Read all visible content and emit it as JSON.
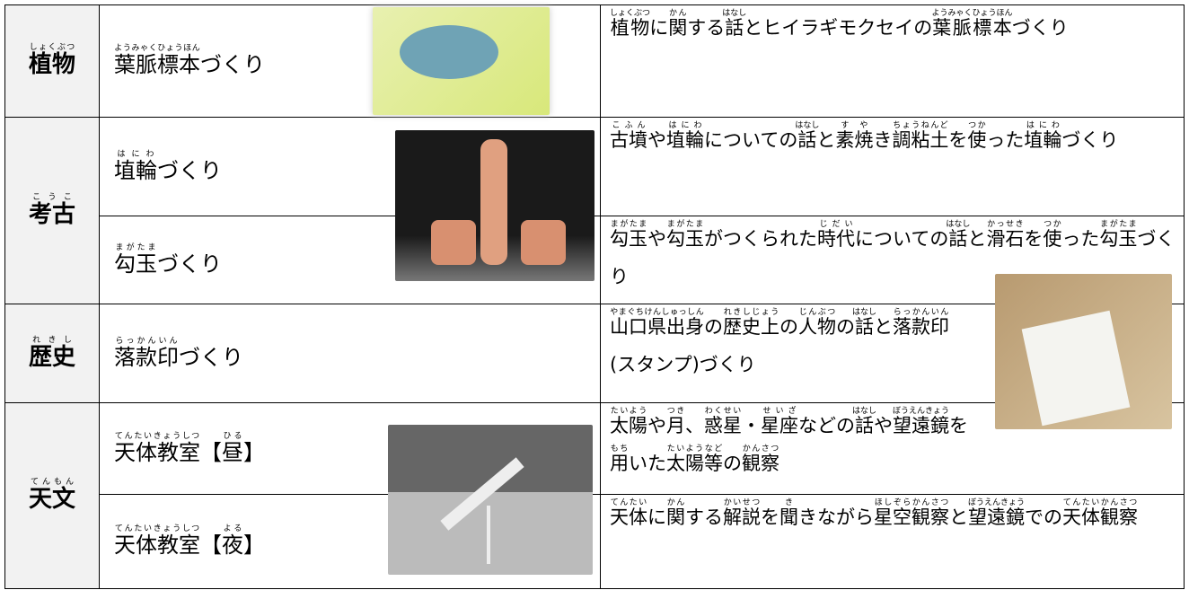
{
  "table": {
    "rows": [
      {
        "category": {
          "base": "植物",
          "ruby": "しょくぶつ"
        },
        "programs": [
          {
            "name": [
              {
                "base": "葉脈標本",
                "ruby": "ようみゃくひょうほん"
              },
              "づくり"
            ],
            "description": [
              {
                "base": "植物",
                "ruby": "しょくぶつ"
              },
              "に",
              {
                "base": "関",
                "ruby": "かん"
              },
              "する",
              {
                "base": "話",
                "ruby": "はなし"
              },
              "とヒイラギモクセイの",
              {
                "base": "葉脈標本",
                "ruby": "ようみゃくひょうほん"
              },
              "づくり"
            ]
          }
        ]
      },
      {
        "category": {
          "base": "考古",
          "ruby": "こうこ"
        },
        "programs": [
          {
            "name": [
              {
                "base": "埴輪",
                "ruby": "はにわ"
              },
              "づくり"
            ],
            "description": [
              {
                "base": "古墳",
                "ruby": "こふん"
              },
              "や",
              {
                "base": "埴輪",
                "ruby": "はにわ"
              },
              "についての",
              {
                "base": "話",
                "ruby": "はなし"
              },
              "と",
              {
                "base": "素焼",
                "ruby": "すや"
              },
              "き",
              {
                "base": "調粘土",
                "ruby": "ちょうねんど"
              },
              "を",
              {
                "base": "使",
                "ruby": "つか"
              },
              "った",
              {
                "base": "埴輪",
                "ruby": "はにわ"
              },
              "づくり"
            ]
          },
          {
            "name": [
              {
                "base": "勾玉",
                "ruby": "まがたま"
              },
              "づくり"
            ],
            "description": [
              {
                "base": "勾玉",
                "ruby": "まがたま"
              },
              "や",
              {
                "base": "勾玉",
                "ruby": "まがたま"
              },
              "がつくられた",
              {
                "base": "時代",
                "ruby": "じだい"
              },
              "についての",
              {
                "base": "話",
                "ruby": "はなし"
              },
              "と",
              {
                "base": "滑石",
                "ruby": "かっせき"
              },
              "を",
              {
                "base": "使",
                "ruby": "つか"
              },
              "った",
              {
                "base": "勾玉",
                "ruby": "まがたま"
              },
              "づくり"
            ]
          }
        ]
      },
      {
        "category": {
          "base": "歴史",
          "ruby": "れきし"
        },
        "programs": [
          {
            "name": [
              {
                "base": "落款印",
                "ruby": "らっかんいん"
              },
              "づくり"
            ],
            "description": [
              {
                "base": "山口県出身",
                "ruby": "やまぐちけんしゅっしん"
              },
              "の",
              {
                "base": "歴史上",
                "ruby": "れきしじょう"
              },
              "の",
              {
                "base": "人物",
                "ruby": "じんぶつ"
              },
              "の",
              {
                "base": "話",
                "ruby": "はなし"
              },
              "と",
              {
                "base": "落款印",
                "ruby": "らっかんいん"
              },
              "(スタンプ)づくり"
            ]
          }
        ]
      },
      {
        "category": {
          "base": "天文",
          "ruby": "てんもん"
        },
        "programs": [
          {
            "name": [
              {
                "base": "天体教室",
                "ruby": "てんたいきょうしつ"
              },
              "【",
              {
                "base": "昼",
                "ruby": "ひる"
              },
              "】"
            ],
            "description": [
              {
                "base": "太陽",
                "ruby": "たいよう"
              },
              "や",
              {
                "base": "月",
                "ruby": "つき"
              },
              "、",
              {
                "base": "惑星",
                "ruby": "わくせい"
              },
              "・",
              {
                "base": "星座",
                "ruby": "せいざ"
              },
              "などの",
              {
                "base": "話",
                "ruby": "はなし"
              },
              "や",
              {
                "base": "望遠鏡",
                "ruby": "ぼうえんきょう"
              },
              "を",
              {
                "base": "用",
                "ruby": "もち"
              },
              "いた",
              {
                "base": "太陽等",
                "ruby": "たいようなど"
              },
              "の",
              {
                "base": "観察",
                "ruby": "かんさつ"
              }
            ]
          },
          {
            "name": [
              {
                "base": "天体教室",
                "ruby": "てんたいきょうしつ"
              },
              "【",
              {
                "base": "夜",
                "ruby": "よる"
              },
              "】"
            ],
            "description": [
              {
                "base": "天体",
                "ruby": "てんたい"
              },
              "に",
              {
                "base": "関",
                "ruby": "かん"
              },
              "する",
              {
                "base": "解説",
                "ruby": "かいせつ"
              },
              "を",
              {
                "base": "聞",
                "ruby": "き"
              },
              "きながら",
              {
                "base": "星空観察",
                "ruby": "ほしぞらかんさつ"
              },
              "と",
              {
                "base": "望遠鏡",
                "ruby": "ぼうえんきょう"
              },
              "での",
              {
                "base": "天体観察",
                "ruby": "てんたいかんさつ"
              }
            ]
          }
        ]
      }
    ]
  }
}
